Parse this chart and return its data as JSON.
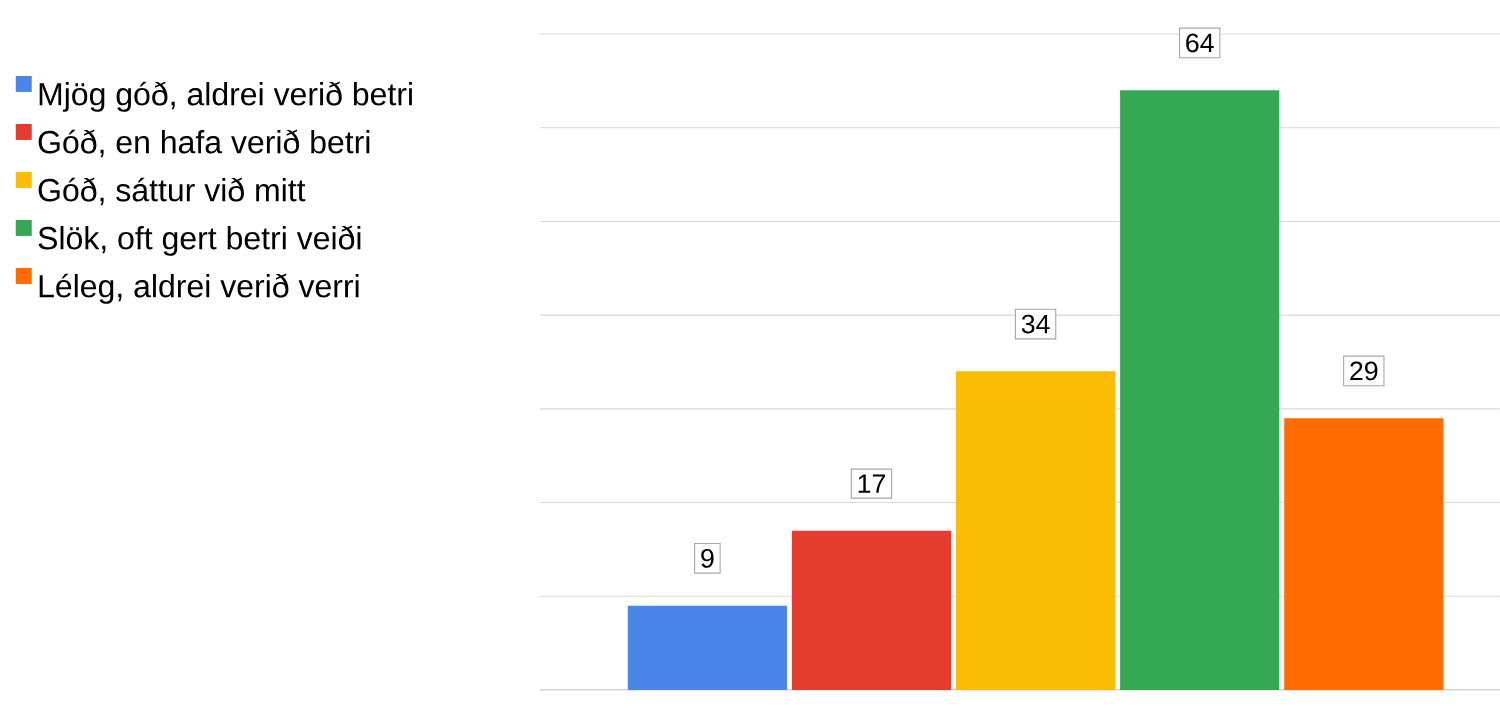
{
  "chart_data": {
    "type": "bar",
    "categories": [
      null
    ],
    "series": [
      {
        "name": "Mjög góð, aldrei verið betri",
        "color": "#4a86e8",
        "values": [
          9
        ]
      },
      {
        "name": "Góð, en hafa verið betri",
        "color": "#e53c2f",
        "values": [
          17
        ]
      },
      {
        "name": "Góð, sáttur við mitt",
        "color": "#fbbc05",
        "values": [
          34
        ]
      },
      {
        "name": "Slök, oft gert betri veiði",
        "color": "#34a853",
        "values": [
          64
        ]
      },
      {
        "name": "Léleg, aldrei verið verri",
        "color": "#ff6d00",
        "values": [
          29
        ]
      }
    ],
    "ylim": [
      0,
      70
    ],
    "yticks": [
      {
        "value": 0,
        "label": null
      },
      {
        "value": 10,
        "label": null
      },
      {
        "value": 20,
        "label": null
      },
      {
        "value": 30,
        "label": null
      },
      {
        "value": 40,
        "label": null
      },
      {
        "value": 50,
        "label": null
      },
      {
        "value": 60,
        "label": null
      },
      {
        "value": 70,
        "label": null
      }
    ],
    "grid": "y",
    "legend": "left",
    "data_labels": true
  }
}
